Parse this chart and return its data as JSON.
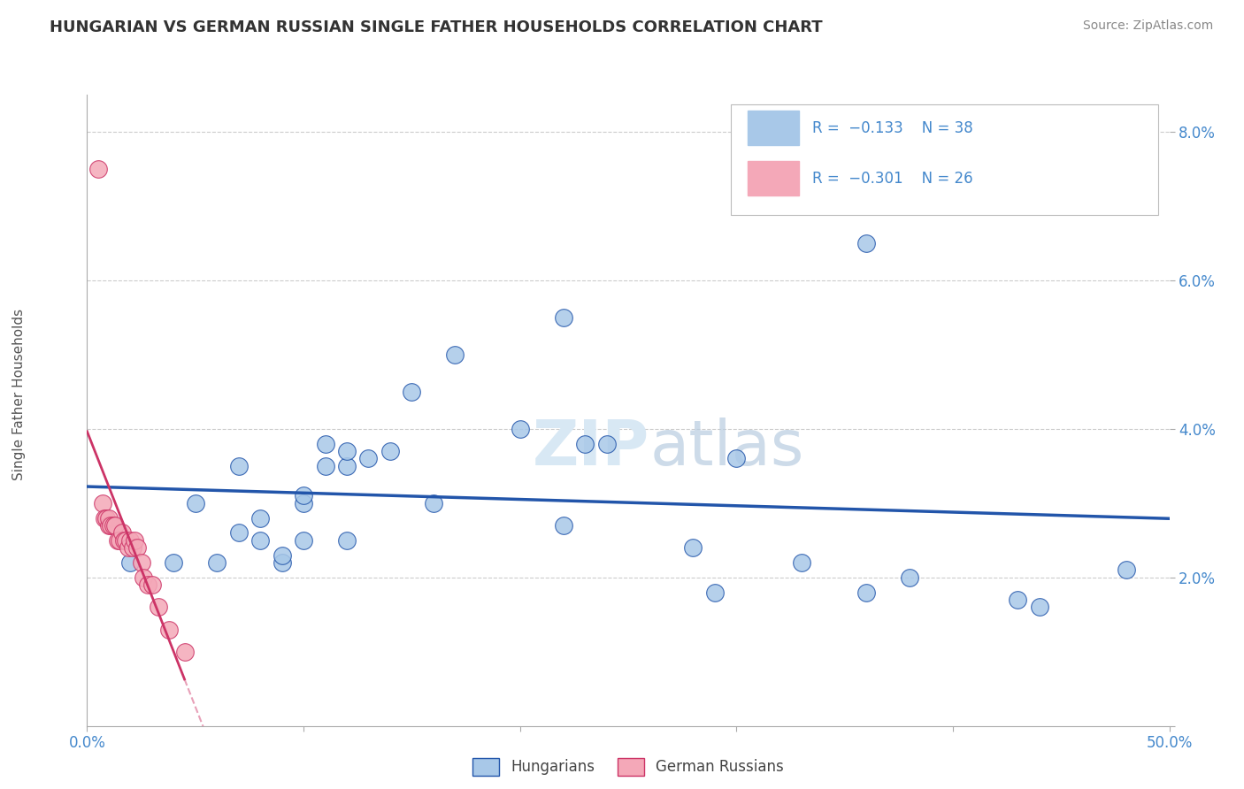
{
  "title": "HUNGARIAN VS GERMAN RUSSIAN SINGLE FATHER HOUSEHOLDS CORRELATION CHART",
  "source": "Source: ZipAtlas.com",
  "ylabel": "Single Father Households",
  "xlim": [
    0,
    0.5
  ],
  "ylim": [
    0,
    0.085
  ],
  "color_hungarian": "#A8C8E8",
  "color_german_russian": "#F4A8B8",
  "line_color_hungarian": "#2255AA",
  "line_color_german_russian": "#CC3366",
  "line_color_german_russian_dashed": "#E8A0B8",
  "tick_color": "#4488CC",
  "watermark_color": "#D8E8F4",
  "hungarian_x": [
    0.02,
    0.04,
    0.05,
    0.06,
    0.07,
    0.07,
    0.08,
    0.08,
    0.09,
    0.09,
    0.1,
    0.1,
    0.1,
    0.11,
    0.11,
    0.12,
    0.12,
    0.12,
    0.13,
    0.14,
    0.15,
    0.16,
    0.17,
    0.2,
    0.22,
    0.22,
    0.23,
    0.24,
    0.28,
    0.29,
    0.3,
    0.33,
    0.36,
    0.36,
    0.38,
    0.43,
    0.44,
    0.48
  ],
  "hungarian_y": [
    0.022,
    0.022,
    0.03,
    0.022,
    0.026,
    0.035,
    0.025,
    0.028,
    0.022,
    0.023,
    0.025,
    0.03,
    0.031,
    0.035,
    0.038,
    0.035,
    0.037,
    0.025,
    0.036,
    0.037,
    0.045,
    0.03,
    0.05,
    0.04,
    0.027,
    0.055,
    0.038,
    0.038,
    0.024,
    0.018,
    0.036,
    0.022,
    0.018,
    0.065,
    0.02,
    0.017,
    0.016,
    0.021
  ],
  "german_russian_x": [
    0.005,
    0.007,
    0.008,
    0.009,
    0.01,
    0.01,
    0.011,
    0.012,
    0.013,
    0.014,
    0.015,
    0.016,
    0.017,
    0.018,
    0.019,
    0.02,
    0.021,
    0.022,
    0.023,
    0.025,
    0.026,
    0.028,
    0.03,
    0.033,
    0.038,
    0.045
  ],
  "german_russian_y": [
    0.075,
    0.03,
    0.028,
    0.028,
    0.027,
    0.028,
    0.027,
    0.027,
    0.027,
    0.025,
    0.025,
    0.026,
    0.025,
    0.025,
    0.024,
    0.025,
    0.024,
    0.025,
    0.024,
    0.022,
    0.02,
    0.019,
    0.019,
    0.016,
    0.013,
    0.01
  ]
}
